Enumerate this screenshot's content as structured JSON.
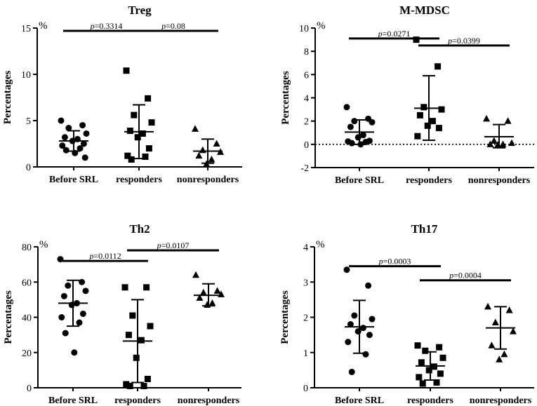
{
  "chart_data": [
    {
      "type": "scatter",
      "title": "Treg",
      "ylabel": "Percentages",
      "unit": "%",
      "ylim": [
        0,
        15
      ],
      "yticks": [
        0,
        5,
        10,
        15
      ],
      "tick_labels": [
        "0",
        "5",
        "10",
        "15"
      ],
      "zero_line": false,
      "categories": [
        "Before SRL",
        "responders",
        "nonresponders"
      ],
      "groups": [
        {
          "name": "Before SRL",
          "marker": "circle",
          "mean": 2.8,
          "sd_low": 1.7,
          "sd_high": 3.9,
          "values": [
            5.0,
            4.5,
            4.2,
            3.6,
            3.2,
            3.0,
            2.8,
            2.5,
            2.3,
            2.0,
            1.8,
            1.5,
            1.0
          ]
        },
        {
          "name": "responders",
          "marker": "square",
          "mean": 3.8,
          "sd_low": 0.9,
          "sd_high": 6.7,
          "values": [
            10.4,
            7.4,
            5.6,
            4.8,
            3.9,
            3.6,
            3.2,
            2.0,
            1.2,
            1.1,
            0.8
          ]
        },
        {
          "name": "nonresponders",
          "marker": "triangle",
          "mean": 1.7,
          "sd_low": 0.4,
          "sd_high": 3.0,
          "values": [
            4.1,
            2.5,
            1.8,
            1.6,
            1.2,
            0.8,
            0.3
          ]
        }
      ],
      "comparisons": [
        {
          "from": "Before SRL",
          "to": "responders",
          "label": "p=0.3314",
          "y": 14.7
        },
        {
          "from": "responders",
          "to": "nonresponders",
          "label": "p=0.08",
          "y": 14.7
        }
      ]
    },
    {
      "type": "scatter",
      "title": "M-MDSC",
      "ylabel": "Percentages",
      "unit": "%",
      "ylim": [
        -2,
        10
      ],
      "yticks": [
        -2,
        0,
        2,
        4,
        6,
        8,
        10
      ],
      "tick_labels": [
        "-2",
        "0",
        "2",
        "4",
        "6",
        "8",
        "10"
      ],
      "zero_line": true,
      "categories": [
        "Before SRL",
        "responders",
        "nonresponders"
      ],
      "groups": [
        {
          "name": "Before SRL",
          "marker": "circle",
          "mean": 1.05,
          "sd_low": 0.0,
          "sd_high": 2.1,
          "values": [
            3.2,
            2.2,
            2.0,
            1.9,
            1.5,
            0.8,
            0.6,
            0.3,
            0.25,
            0.2,
            0.1,
            0.0
          ]
        },
        {
          "name": "responders",
          "marker": "square",
          "mean": 3.1,
          "sd_low": 0.35,
          "sd_high": 5.9,
          "values": [
            9.0,
            6.7,
            3.2,
            3.0,
            2.5,
            2.0,
            1.6,
            1.4,
            0.7
          ]
        },
        {
          "name": "nonresponders",
          "marker": "triangle",
          "mean": 0.65,
          "sd_low": -0.3,
          "sd_high": 1.7,
          "values": [
            2.2,
            2.0,
            0.3,
            0.1,
            0.0,
            0.0,
            -0.05
          ]
        }
      ],
      "comparisons": [
        {
          "from": "Before SRL",
          "to": "responders",
          "label": "p=0.0271",
          "y": 9.1
        },
        {
          "from": "responders",
          "to": "nonresponders",
          "label": "p=0.0399",
          "y": 8.5
        }
      ]
    },
    {
      "type": "scatter",
      "title": "Th2",
      "ylabel": "Percentages",
      "unit": "%",
      "ylim": [
        0,
        80
      ],
      "yticks": [
        0,
        20,
        40,
        60,
        80
      ],
      "tick_labels": [
        "0",
        "20",
        "40",
        "60",
        "80"
      ],
      "zero_line": false,
      "categories": [
        "Before SRL",
        "responders",
        "nonresponders"
      ],
      "groups": [
        {
          "name": "Before SRL",
          "marker": "circle",
          "mean": 48,
          "sd_low": 35,
          "sd_high": 61,
          "values": [
            73,
            60,
            58,
            55,
            52,
            48,
            47,
            42,
            40,
            37,
            31,
            20
          ]
        },
        {
          "name": "responders",
          "marker": "square",
          "mean": 26.5,
          "sd_low": 3,
          "sd_high": 50,
          "values": [
            57,
            57,
            41,
            35,
            30,
            27,
            17,
            5,
            2,
            1,
            1
          ]
        },
        {
          "name": "nonresponders",
          "marker": "triangle",
          "mean": 52.5,
          "sd_low": 46.5,
          "sd_high": 59,
          "values": [
            64,
            55,
            54,
            53,
            51,
            48,
            47
          ]
        }
      ],
      "comparisons": [
        {
          "from": "Before SRL",
          "to": "responders",
          "label": "p=0.0112",
          "y": 72
        },
        {
          "from": "responders",
          "to": "nonresponders",
          "label": "p=0.0107",
          "y": 78
        }
      ]
    },
    {
      "type": "scatter",
      "title": "Th17",
      "ylabel": "Percentages",
      "unit": "%",
      "ylim": [
        0,
        4
      ],
      "yticks": [
        0,
        1,
        2,
        3,
        4
      ],
      "tick_labels": [
        "0",
        "1",
        "2",
        "3",
        "4"
      ],
      "zero_line": false,
      "categories": [
        "Before SRL",
        "responders",
        "nonresponders"
      ],
      "groups": [
        {
          "name": "Before SRL",
          "marker": "circle",
          "mean": 1.73,
          "sd_low": 0.98,
          "sd_high": 2.48,
          "values": [
            3.35,
            2.9,
            2.05,
            1.95,
            1.8,
            1.7,
            1.6,
            1.5,
            1.3,
            0.95,
            0.45
          ]
        },
        {
          "name": "responders",
          "marker": "square",
          "mean": 0.62,
          "sd_low": 0.22,
          "sd_high": 1.02,
          "values": [
            1.2,
            1.15,
            1.05,
            0.85,
            0.72,
            0.6,
            0.5,
            0.4,
            0.3,
            0.15,
            0.12
          ]
        },
        {
          "name": "nonresponders",
          "marker": "triangle",
          "mean": 1.7,
          "sd_low": 1.1,
          "sd_high": 2.3,
          "values": [
            2.3,
            2.2,
            1.85,
            1.6,
            1.2,
            0.95,
            0.8
          ]
        }
      ],
      "comparisons": [
        {
          "from": "Before SRL",
          "to": "responders",
          "label": "p=0.0003",
          "y": 3.45
        },
        {
          "from": "responders",
          "to": "nonresponders",
          "label": "p=0.0004",
          "y": 3.05
        }
      ]
    }
  ]
}
